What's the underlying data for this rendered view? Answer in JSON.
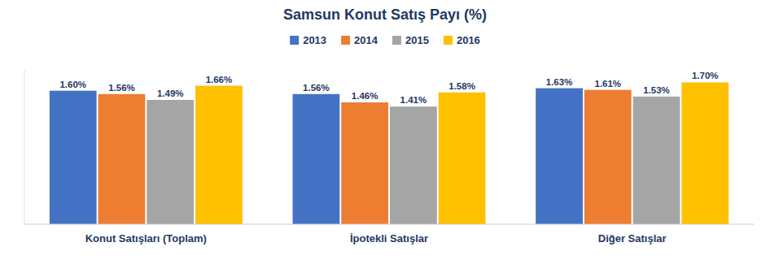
{
  "chart_data": {
    "type": "bar",
    "title": "Samsun Konut Satış Payı (%)",
    "categories": [
      "Konut Satışları (Toplam)",
      "İpotekli Satışlar",
      "Diğer Satışlar"
    ],
    "series": [
      {
        "name": "2013",
        "color": "#4472C4",
        "values": [
          1.6,
          1.56,
          1.63
        ],
        "value_labels": [
          "1.60%",
          "1.56%",
          "1.63%"
        ]
      },
      {
        "name": "2014",
        "color": "#ED7D31",
        "values": [
          1.56,
          1.46,
          1.61
        ],
        "value_labels": [
          "1.56%",
          "1.46%",
          "1.61%"
        ]
      },
      {
        "name": "2015",
        "color": "#A5A5A5",
        "values": [
          1.49,
          1.41,
          1.53
        ],
        "value_labels": [
          "1.49%",
          "1.41%",
          "1.53%"
        ]
      },
      {
        "name": "2016",
        "color": "#FFC000",
        "values": [
          1.66,
          1.58,
          1.7
        ],
        "value_labels": [
          "1.66%",
          "1.58%",
          "1.70%"
        ]
      }
    ],
    "ylim": [
      0,
      1.85
    ],
    "data_labels": true,
    "tick_labels": "x",
    "grid": false,
    "legend": "top"
  }
}
